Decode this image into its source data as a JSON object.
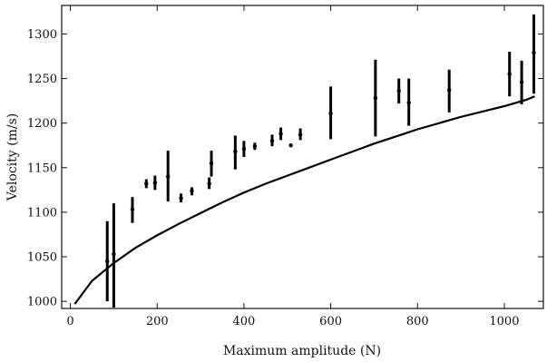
{
  "chart_data": {
    "type": "scatter",
    "title": "",
    "xlabel": "Maximum amplitude (N)",
    "ylabel": "Velocity (m/s)",
    "xlim": [
      -20,
      1090
    ],
    "ylim": [
      992,
      1332
    ],
    "xticks": [
      0,
      200,
      400,
      600,
      800,
      1000
    ],
    "yticks": [
      1000,
      1050,
      1100,
      1150,
      1200,
      1250,
      1300
    ],
    "grid": false,
    "series": [
      {
        "kind": "points-with-error-bars",
        "points": [
          {
            "x": 85,
            "y": 1045,
            "low": 1000,
            "high": 1090
          },
          {
            "x": 100,
            "y": 1053,
            "low": 993,
            "high": 1110
          },
          {
            "x": 143,
            "y": 1103,
            "low": 1088,
            "high": 1117
          },
          {
            "x": 175,
            "y": 1132,
            "low": 1127,
            "high": 1137
          },
          {
            "x": 195,
            "y": 1133,
            "low": 1125,
            "high": 1141
          },
          {
            "x": 225,
            "y": 1140,
            "low": 1112,
            "high": 1169
          },
          {
            "x": 255,
            "y": 1116,
            "low": 1111,
            "high": 1121
          },
          {
            "x": 280,
            "y": 1124,
            "low": 1119,
            "high": 1128
          },
          {
            "x": 320,
            "y": 1132,
            "low": 1126,
            "high": 1139
          },
          {
            "x": 325,
            "y": 1155,
            "low": 1140,
            "high": 1169
          },
          {
            "x": 380,
            "y": 1168,
            "low": 1148,
            "high": 1186
          },
          {
            "x": 400,
            "y": 1171,
            "low": 1162,
            "high": 1180
          },
          {
            "x": 425,
            "y": 1174,
            "low": 1170,
            "high": 1178
          },
          {
            "x": 465,
            "y": 1180,
            "low": 1174,
            "high": 1187
          },
          {
            "x": 485,
            "y": 1188,
            "low": 1181,
            "high": 1195
          },
          {
            "x": 508,
            "y": 1175,
            "low": 1174,
            "high": 1176
          },
          {
            "x": 530,
            "y": 1187,
            "low": 1181,
            "high": 1194
          },
          {
            "x": 600,
            "y": 1211,
            "low": 1182,
            "high": 1241
          },
          {
            "x": 703,
            "y": 1228,
            "low": 1185,
            "high": 1271
          },
          {
            "x": 757,
            "y": 1236,
            "low": 1222,
            "high": 1250
          },
          {
            "x": 780,
            "y": 1223,
            "low": 1197,
            "high": 1250
          },
          {
            "x": 873,
            "y": 1237,
            "low": 1212,
            "high": 1260
          },
          {
            "x": 1012,
            "y": 1255,
            "low": 1230,
            "high": 1280
          },
          {
            "x": 1040,
            "y": 1246,
            "low": 1221,
            "high": 1270
          },
          {
            "x": 1068,
            "y": 1279,
            "low": 1233,
            "high": 1322
          }
        ]
      },
      {
        "kind": "line",
        "x": [
          10,
          50,
          100,
          150,
          200,
          250,
          300,
          350,
          400,
          450,
          500,
          550,
          600,
          650,
          700,
          750,
          800,
          850,
          900,
          950,
          1000,
          1050,
          1070
        ],
        "y": [
          997,
          1023,
          1043,
          1060,
          1074,
          1087,
          1099,
          1111,
          1122,
          1132,
          1141,
          1150,
          1159,
          1168,
          1177,
          1185,
          1193,
          1200,
          1207,
          1213,
          1219,
          1226,
          1230
        ]
      }
    ]
  }
}
